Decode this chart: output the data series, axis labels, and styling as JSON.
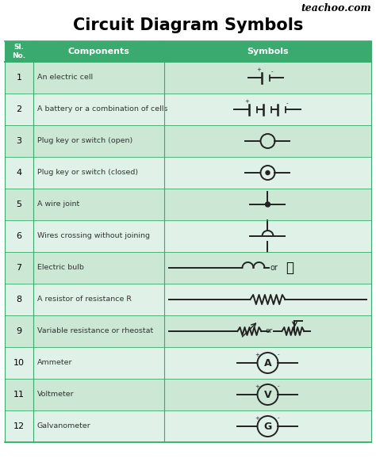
{
  "title": "Circuit Diagram Symbols",
  "watermark": "teachoo.com",
  "bg_color": "#ffffff",
  "header_color": "#3aaa6e",
  "row_bg_even": "#cce8d4",
  "row_bg_odd": "#e0f2e7",
  "num_rows": 12,
  "components": [
    "An electric cell",
    "A battery or a combination of cells",
    "Plug key or switch (open)",
    "Plug key or switch (closed)",
    "A wire joint",
    "Wires crossing without joining",
    "Electric bulb",
    "A resistor of resistance R",
    "Variable resistance or rheostat",
    "Ammeter",
    "Voltmeter",
    "Galvanometer"
  ],
  "figw": 4.74,
  "figh": 5.78,
  "dpi": 100
}
